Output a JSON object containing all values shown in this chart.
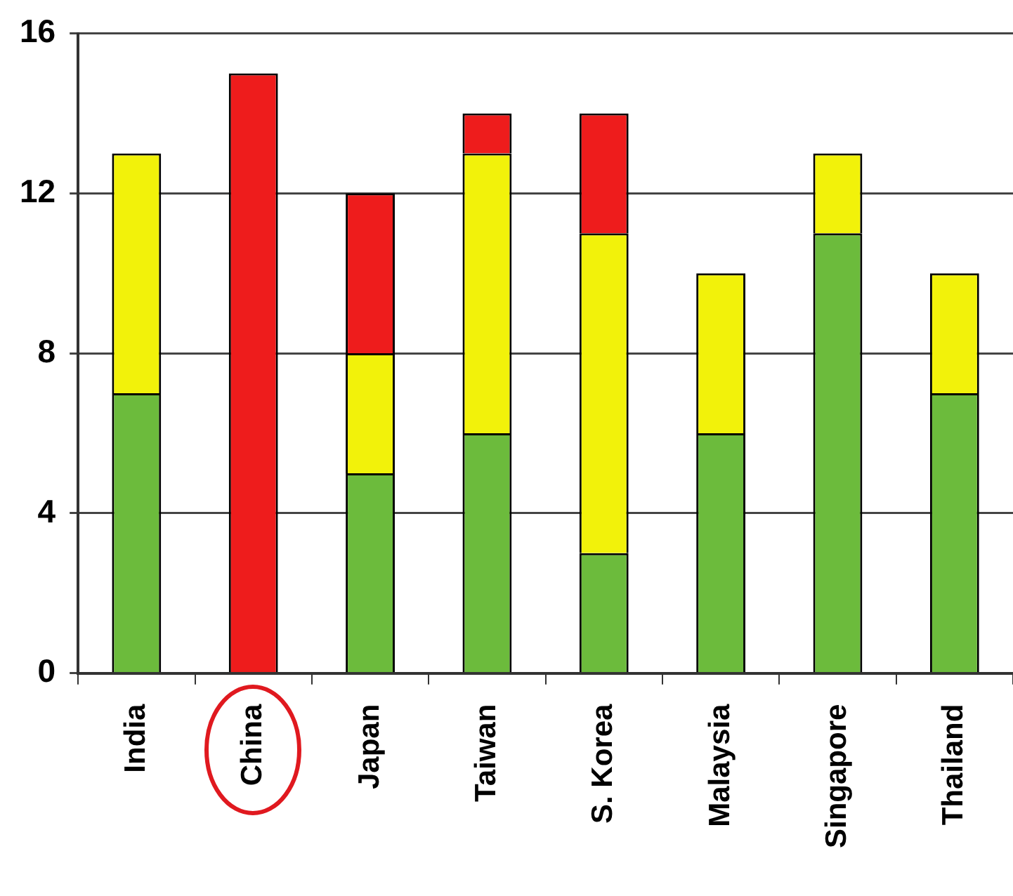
{
  "chart_data": {
    "type": "bar",
    "stacked": true,
    "grid": "y",
    "legend": false,
    "categories": [
      "India",
      "China",
      "Japan",
      "Taiwan",
      "S. Korea",
      "Malaysia",
      "Singapore",
      "Thailand"
    ],
    "series": [
      {
        "color": "#6cbb3c",
        "values": [
          7,
          null,
          5,
          6,
          3,
          6,
          11,
          7
        ]
      },
      {
        "color": "#f2f20a",
        "values": [
          6,
          null,
          3,
          7,
          8,
          4,
          2,
          3
        ]
      },
      {
        "color": "#ee1c1c",
        "values": [
          null,
          15,
          4,
          1,
          3,
          null,
          null,
          null
        ]
      }
    ],
    "ylim": [
      0,
      16
    ],
    "yticks": [
      0,
      4,
      8,
      12,
      16
    ]
  }
}
